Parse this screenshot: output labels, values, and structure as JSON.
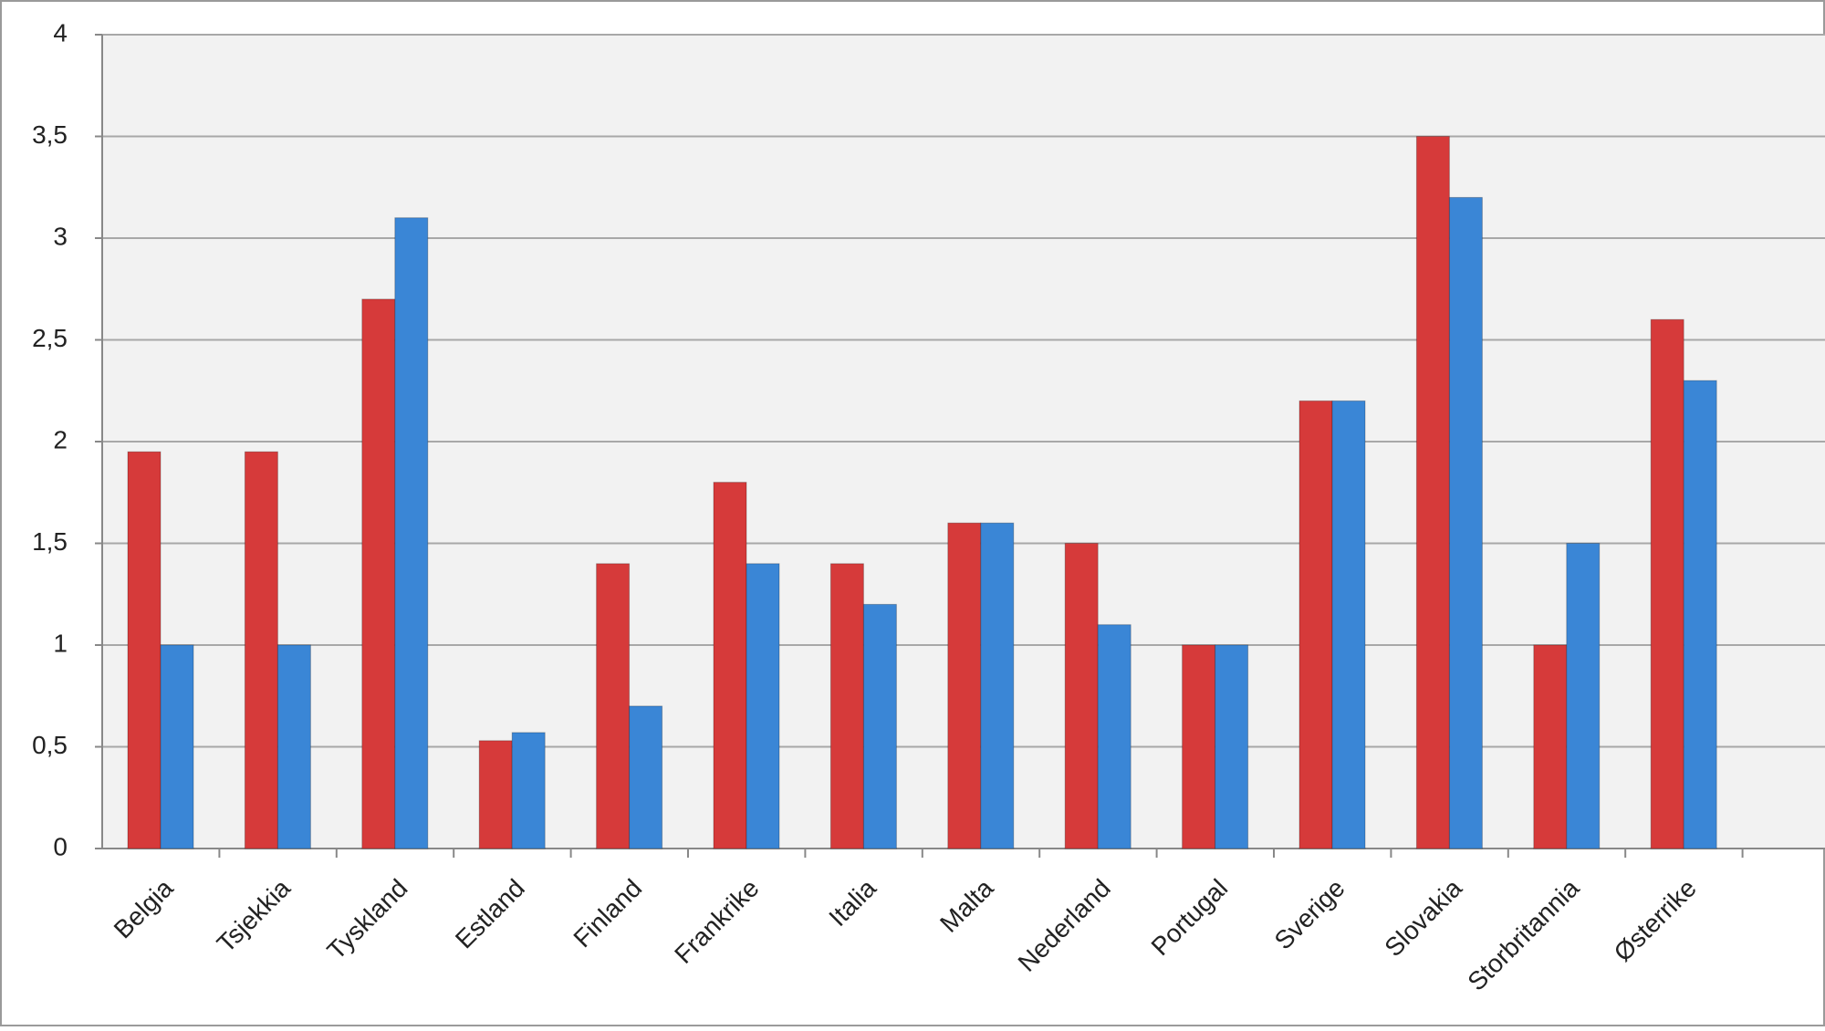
{
  "chart_data": {
    "type": "bar",
    "categories": [
      "Belgia",
      "Tsjekkia",
      "Tyskland",
      "Estland",
      "Finland",
      "Frankrike",
      "Italia",
      "Malta",
      "Nederland",
      "Portugal",
      "Sverige",
      "Slovakia",
      "Storbritannia",
      "Østerrike",
      null
    ],
    "series": [
      {
        "color": "#d63a3a",
        "values": [
          1.95,
          1.95,
          2.7,
          0.53,
          1.4,
          1.8,
          1.4,
          1.6,
          1.5,
          1.0,
          2.2,
          3.5,
          1.0,
          2.6,
          null
        ]
      },
      {
        "color": "#3a86d6",
        "values": [
          1.0,
          1.0,
          3.1,
          0.57,
          0.7,
          1.4,
          1.2,
          1.6,
          1.1,
          1.0,
          2.2,
          3.2,
          1.5,
          2.3,
          null
        ]
      }
    ],
    "ylim": [
      0,
      4
    ],
    "yticks": [
      0,
      {
        "value": 0.5,
        "label": "0,5"
      },
      1,
      {
        "value": 1.5,
        "label": "1,5"
      },
      2,
      {
        "value": 2.5,
        "label": "2,5"
      },
      3,
      {
        "value": 3.5,
        "label": "3,5"
      },
      4
    ],
    "grid": true
  }
}
